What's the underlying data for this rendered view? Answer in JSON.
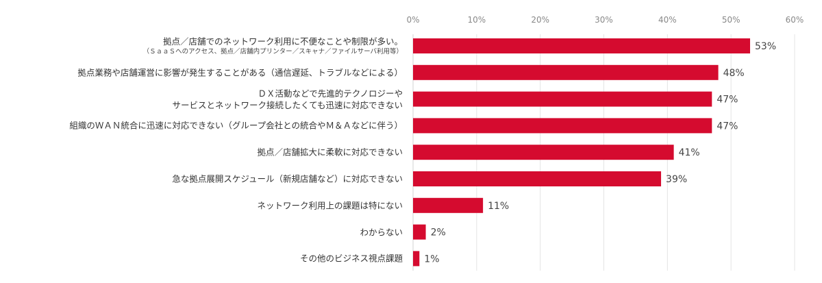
{
  "chart_data": {
    "type": "bar",
    "orientation": "horizontal",
    "title": "",
    "xlabel": "",
    "ylabel": "",
    "xlim": [
      0,
      60
    ],
    "x_ticks": [
      "0%",
      "10%",
      "20%",
      "30%",
      "40%",
      "50%",
      "60%"
    ],
    "grid": true,
    "bar_color": "#d50b2f",
    "categories": [
      {
        "lines": [
          "拠点／店舗でのネットワーク利用に不便なことや制限が多い。"
        ],
        "sub": "（ＳａａＳへのアクセス、拠点／店舗内プリンター／スキャナ／ファイルサーバ利用等）"
      },
      {
        "lines": [
          "拠点業務や店舗運営に影響が発生することがある（通信遅延、トラブルなどによる）"
        ]
      },
      {
        "lines": [
          "ＤＸ活動などで先進的テクノロジーや",
          "サービスとネットワーク接続したくても迅速に対応できない"
        ]
      },
      {
        "lines": [
          "組織のＷＡＮ統合に迅速に対応できない（グループ会社との統合やＭ＆Ａなどに伴う）"
        ]
      },
      {
        "lines": [
          "拠点／店舗拡大に柔軟に対応できない"
        ]
      },
      {
        "lines": [
          "急な拠点展開スケジュール（新規店舗など）に対応できない"
        ]
      },
      {
        "lines": [
          "ネットワーク利用上の課題は特にない"
        ]
      },
      {
        "lines": [
          "わからない"
        ]
      },
      {
        "lines": [
          "その他のビジネス視点課題"
        ]
      }
    ],
    "values": [
      53,
      48,
      47,
      47,
      41,
      39,
      11,
      2,
      1
    ],
    "data_labels": [
      "53%",
      "48%",
      "47%",
      "47%",
      "41%",
      "39%",
      "11%",
      "2%",
      "1%"
    ]
  }
}
